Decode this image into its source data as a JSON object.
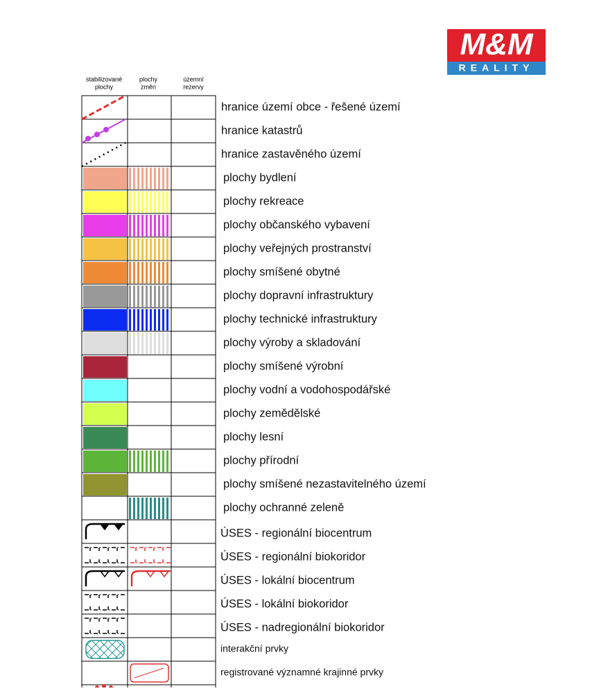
{
  "logo": {
    "brand": "M&M",
    "tagline": "REALITY"
  },
  "columns": [
    [
      "stabilizované",
      "plochy"
    ],
    [
      "plochy",
      "změn"
    ],
    [
      "územní",
      "rezervy"
    ]
  ],
  "rows": [
    {
      "label": "hranice území obce - řešené území"
    },
    {
      "label": "hranice katastrů"
    },
    {
      "label": "hranice zastavěného území"
    },
    {
      "label": "plochy bydlení",
      "color": "#f0a68a",
      "hatch": "#f0a68a"
    },
    {
      "label": "plochy rekreace",
      "color": "#ffff55",
      "hatch": "#ffff55"
    },
    {
      "label": "plochy občanského vybavení",
      "color": "#e83de8",
      "hatch": "#e83de8"
    },
    {
      "label": "plochy veřejných prostranství",
      "color": "#f5c244",
      "hatch": "#f5c244"
    },
    {
      "label": "plochy smíšené obytné",
      "color": "#ee8a35",
      "hatch": "#ee8a35"
    },
    {
      "label": "plochy dopravní infrastruktury",
      "color": "#999999",
      "hatch": "#999999"
    },
    {
      "label": "plochy technické infrastruktury",
      "color": "#0a2cf0",
      "hatch": "#0a2cf0"
    },
    {
      "label": "plochy výroby a skladování",
      "color": "#dddddd",
      "hatch": "#dddddd"
    },
    {
      "label": "plochy smíšené výrobní",
      "color": "#a8253a"
    },
    {
      "label": "plochy vodní a vodohospodářské",
      "color": "#70ffff"
    },
    {
      "label": "plochy zemědělské",
      "color": "#d5ff4f"
    },
    {
      "label": "plochy lesní",
      "color": "#3a8a55"
    },
    {
      "label": "plochy přírodní",
      "color": "#5db53a",
      "hatch": "#5db53a"
    },
    {
      "label": "plochy smíšené nezastavitelného území",
      "color": "#919430"
    },
    {
      "label": "plochy ochranné zeleně",
      "hatch": "#2a8a8a"
    },
    {
      "label": "ÚSES - regionální biocentrum"
    },
    {
      "label": "ÚSES - regionální biokoridor"
    },
    {
      "label": "ÚSES - lokální biocentrum"
    },
    {
      "label": "ÚSES - lokální biokoridor"
    },
    {
      "label": "ÚSES - nadregionální biokoridor"
    },
    {
      "label": "interakční prvky"
    },
    {
      "label": "registrované významné krajinné prvky"
    }
  ]
}
